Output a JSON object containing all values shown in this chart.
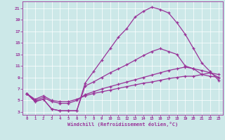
{
  "xlabel": "Windchill (Refroidissement éolien,°C)",
  "background_color": "#cce8e8",
  "line_color": "#993399",
  "xlim": [
    -0.5,
    23.5
  ],
  "ylim": [
    2.5,
    22.2
  ],
  "xticks": [
    0,
    1,
    2,
    3,
    4,
    5,
    6,
    7,
    8,
    9,
    10,
    11,
    12,
    13,
    14,
    15,
    16,
    17,
    18,
    19,
    20,
    21,
    22,
    23
  ],
  "yticks": [
    3,
    5,
    7,
    9,
    11,
    13,
    15,
    17,
    19,
    21
  ],
  "line_peak_x": [
    0,
    1,
    2,
    3,
    4,
    5,
    6,
    7,
    8,
    9,
    10,
    11,
    12,
    13,
    14,
    15,
    16,
    17,
    18,
    19,
    20,
    21,
    22,
    23
  ],
  "line_peak_y": [
    6.2,
    4.8,
    5.2,
    3.5,
    3.2,
    3.2,
    3.2,
    8.0,
    10.0,
    12.0,
    14.0,
    16.0,
    17.5,
    19.5,
    20.5,
    21.2,
    20.8,
    20.2,
    18.5,
    16.5,
    14.0,
    11.5,
    10.0,
    8.5
  ],
  "line_mid_x": [
    0,
    1,
    2,
    3,
    4,
    5,
    6,
    7,
    8,
    9,
    10,
    11,
    12,
    13,
    14,
    15,
    16,
    17,
    18,
    19,
    20,
    21,
    22,
    23
  ],
  "line_mid_y": [
    6.2,
    4.8,
    5.2,
    3.5,
    3.2,
    3.2,
    3.2,
    7.5,
    8.2,
    9.0,
    9.8,
    10.5,
    11.2,
    12.0,
    12.8,
    13.5,
    14.0,
    13.5,
    13.0,
    11.0,
    10.5,
    9.5,
    9.8,
    9.0
  ],
  "line_flat1_x": [
    0,
    1,
    2,
    3,
    4,
    5,
    6,
    7,
    8,
    9,
    10,
    11,
    12,
    13,
    14,
    15,
    16,
    17,
    18,
    19,
    20,
    21,
    22,
    23
  ],
  "line_flat1_y": [
    6.2,
    5.0,
    5.5,
    4.8,
    4.5,
    4.5,
    5.0,
    6.0,
    6.5,
    7.0,
    7.4,
    7.8,
    8.2,
    8.6,
    9.0,
    9.4,
    9.8,
    10.2,
    10.5,
    10.8,
    10.5,
    10.2,
    9.8,
    9.5
  ],
  "line_flat2_x": [
    0,
    1,
    2,
    3,
    4,
    5,
    6,
    7,
    8,
    9,
    10,
    11,
    12,
    13,
    14,
    15,
    16,
    17,
    18,
    19,
    20,
    21,
    22,
    23
  ],
  "line_flat2_y": [
    6.2,
    5.2,
    5.8,
    5.0,
    4.8,
    4.8,
    5.2,
    5.8,
    6.2,
    6.5,
    6.8,
    7.1,
    7.4,
    7.7,
    8.0,
    8.2,
    8.5,
    8.8,
    9.0,
    9.2,
    9.2,
    9.5,
    9.2,
    9.0
  ]
}
